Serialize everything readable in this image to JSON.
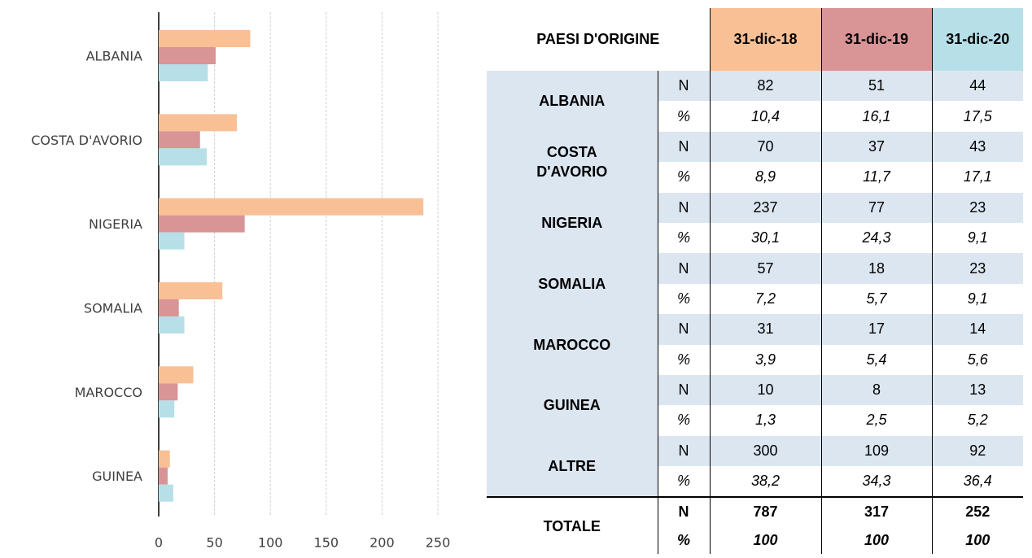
{
  "chart_data": {
    "type": "hbar",
    "categories": [
      "ALBANIA",
      "COSTA D'AVORIO",
      "NIGERIA",
      "SOMALIA",
      "MAROCCO",
      "GUINEA"
    ],
    "series": [
      {
        "color": "#f9c096",
        "values": [
          82,
          70,
          237,
          57,
          31,
          10
        ]
      },
      {
        "color": "#d99496",
        "values": [
          51,
          37,
          77,
          18,
          17,
          8
        ]
      },
      {
        "color": "#b7dfe8",
        "values": [
          44,
          43,
          23,
          23,
          14,
          13
        ]
      }
    ],
    "xlim": [
      0,
      250
    ],
    "xticks": [
      0,
      50,
      100,
      150,
      200,
      250
    ],
    "grid": true
  },
  "table": {
    "header": [
      "PAESI D'ORIGINE",
      "31-dic-18",
      "31-dic-19",
      "31-dic-20"
    ],
    "rows": [
      {
        "name": "ALBANIA",
        "lines": [
          [
            "N",
            "82",
            "51",
            "44"
          ],
          [
            "%",
            "10,4",
            "16,1",
            "17,5"
          ]
        ]
      },
      {
        "name": "COSTA D'AVORIO",
        "lines": [
          [
            "N",
            "70",
            "37",
            "43"
          ],
          [
            "%",
            "8,9",
            "11,7",
            "17,1"
          ]
        ]
      },
      {
        "name": "NIGERIA",
        "lines": [
          [
            "N",
            "237",
            "77",
            "23"
          ],
          [
            "%",
            "30,1",
            "24,3",
            "9,1"
          ]
        ]
      },
      {
        "name": "SOMALIA",
        "lines": [
          [
            "N",
            "57",
            "18",
            "23"
          ],
          [
            "%",
            "7,2",
            "5,7",
            "9,1"
          ]
        ]
      },
      {
        "name": "MAROCCO",
        "lines": [
          [
            "N",
            "31",
            "17",
            "14"
          ],
          [
            "%",
            "3,9",
            "5,4",
            "5,6"
          ]
        ]
      },
      {
        "name": "GUINEA",
        "lines": [
          [
            "N",
            "10",
            "8",
            "13"
          ],
          [
            "%",
            "1,3",
            "2,5",
            "5,2"
          ]
        ]
      },
      {
        "name": "ALTRE",
        "lines": [
          [
            "N",
            "300",
            "109",
            "92"
          ],
          [
            "%",
            "38,2",
            "34,3",
            "36,4"
          ]
        ]
      }
    ],
    "total": {
      "name": "TOTALE",
      "lines": [
        [
          "N",
          "787",
          "317",
          "252"
        ],
        [
          "%",
          "100",
          "100",
          "100"
        ]
      ]
    }
  }
}
